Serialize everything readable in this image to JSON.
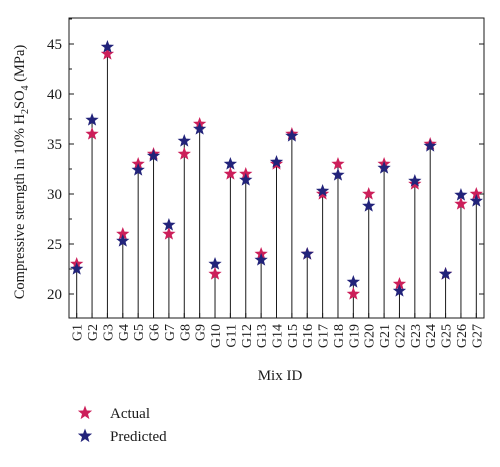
{
  "chart_data": {
    "type": "scatter",
    "variant": "lollipop-stem",
    "xlabel": "Mix ID",
    "ylabel": {
      "prefix": "Compressive sterngth in 10% H",
      "sub1": "2",
      "mid": "SO",
      "sub2": "4",
      "suffix": " (MPa)"
    },
    "ylim": [
      17.6,
      47.6
    ],
    "yticks": [
      20,
      25,
      30,
      35,
      40,
      45
    ],
    "grid": false,
    "legend_placement": "bottom-left",
    "categories": [
      "G1",
      "G2",
      "G3",
      "G4",
      "G5",
      "G6",
      "G7",
      "G8",
      "G9",
      "G10",
      "G11",
      "G12",
      "G13",
      "G14",
      "G15",
      "G16",
      "G17",
      "G18",
      "G19",
      "G20",
      "G21",
      "G22",
      "G23",
      "G24",
      "G25",
      "G26",
      "G27"
    ],
    "series": [
      {
        "name": "Actual",
        "color": "#cc1f5a",
        "marker": "star",
        "values": [
          23,
          36,
          44,
          26,
          33,
          34,
          26,
          34,
          37,
          22,
          32,
          32,
          24,
          33,
          36,
          24,
          30,
          33,
          20,
          30,
          33,
          21,
          31,
          35,
          22,
          29,
          30
        ]
      },
      {
        "name": "Predicted",
        "color": "#22237a",
        "marker": "star",
        "values": [
          22.5,
          37.4,
          44.7,
          25.3,
          32.4,
          33.8,
          26.9,
          35.3,
          36.5,
          23.0,
          33.0,
          31.4,
          23.4,
          33.2,
          35.8,
          24.0,
          30.3,
          31.9,
          21.2,
          28.8,
          32.6,
          20.3,
          31.3,
          34.8,
          22.0,
          29.9,
          29.3
        ]
      }
    ]
  }
}
